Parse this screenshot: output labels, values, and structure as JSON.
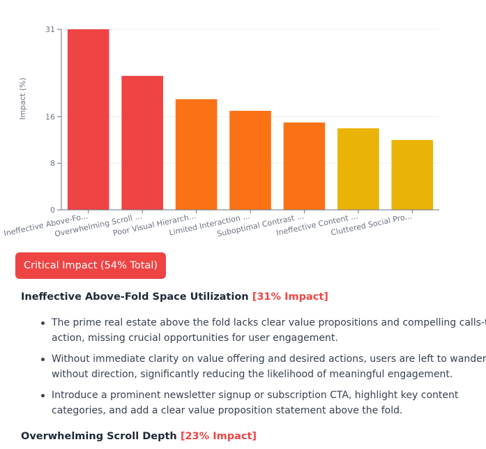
{
  "chart_data": {
    "type": "bar",
    "categories": [
      "Ineffective Above-Fo...",
      "Overwhelming Scroll ...",
      "Poor Visual Hierarch...",
      "Limited Interaction ...",
      "Suboptimal Contrast ...",
      "Ineffective Content ...",
      "Cluttered Social Pro..."
    ],
    "values": [
      31,
      23,
      19,
      17,
      15,
      14,
      12
    ],
    "colors": [
      "#ef4444",
      "#ef4444",
      "#f97316",
      "#f97316",
      "#f97316",
      "#eab308",
      "#eab308"
    ],
    "ylabel": "Impact (%)",
    "yticks": [
      0,
      8,
      16,
      31
    ],
    "ylim": [
      0,
      31
    ],
    "grid": true
  },
  "badge": {
    "label": "Critical Impact (54% Total)",
    "color": "#ef4444"
  },
  "issues": [
    {
      "title": "Ineffective Above-Fold Space Utilization",
      "impact": "[31% Impact]",
      "points": [
        "The prime real estate above the fold lacks clear value propositions and compelling calls-to-action, missing crucial opportunities for user engagement.",
        "Without immediate clarity on value offering and desired actions, users are left to wander without direction, significantly reducing the likelihood of meaningful engagement.",
        "Introduce a prominent newsletter signup or subscription CTA, highlight key content categories, and add a clear value proposition statement above the fold."
      ]
    },
    {
      "title": "Overwhelming Scroll Depth",
      "impact": "[23% Impact]"
    }
  ]
}
